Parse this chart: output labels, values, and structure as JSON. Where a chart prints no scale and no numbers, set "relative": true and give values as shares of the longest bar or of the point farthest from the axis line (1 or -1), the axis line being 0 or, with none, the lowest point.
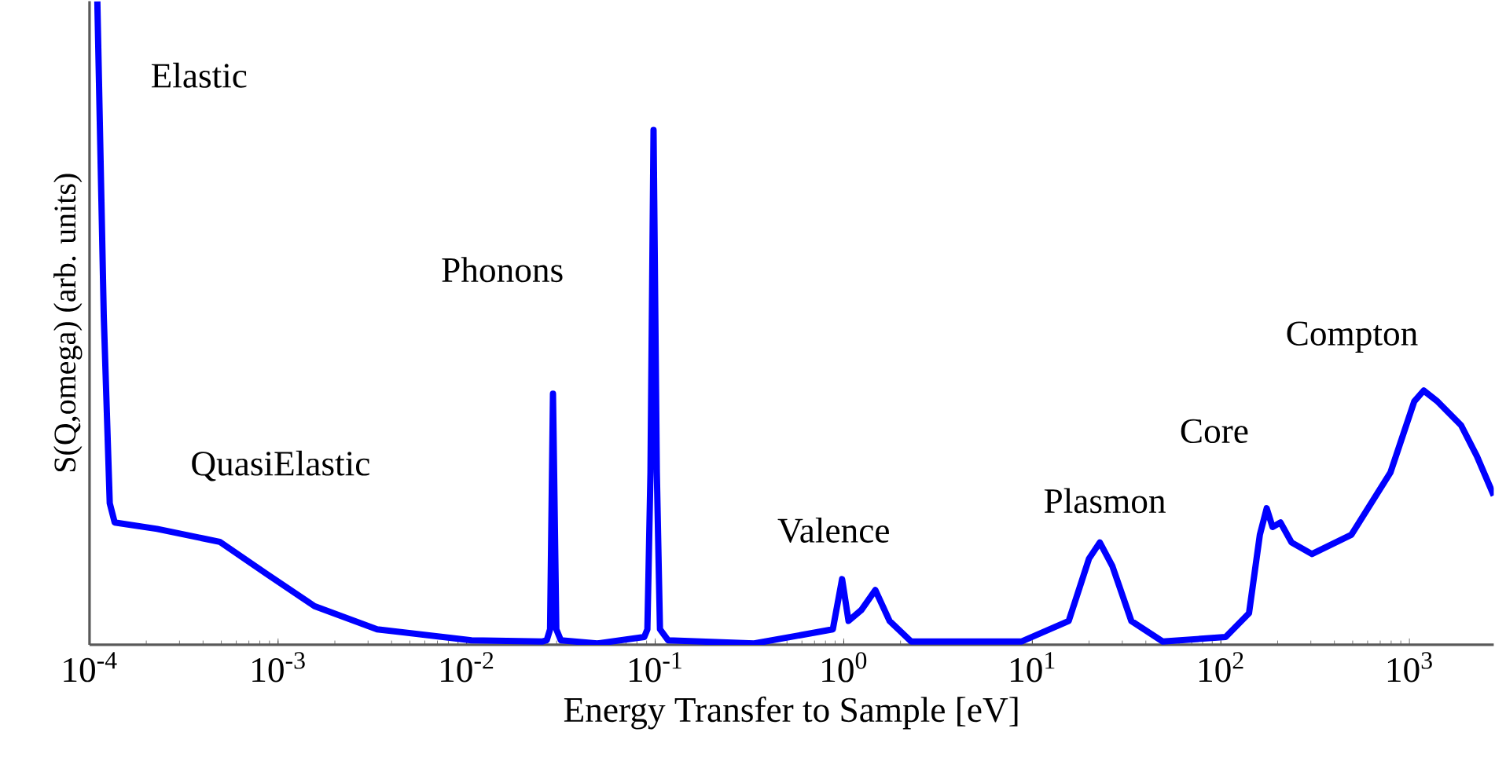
{
  "chart_data": {
    "type": "line",
    "xlabel": "Energy Transfer to Sample [eV]",
    "ylabel": "S(Q,omega)  (arb. units)",
    "log": "x",
    "relative": true,
    "grid": false,
    "marker": "none",
    "line_style": "solid",
    "xlim": [
      0.0001,
      2800
    ],
    "xticks": [
      {
        "value": 0.0001,
        "label": "10$^{-4}$"
      },
      {
        "value": 0.001,
        "label": "10$^{-3}$"
      },
      {
        "value": 0.01,
        "label": "10$^{-2}$"
      },
      {
        "value": 0.1,
        "label": "10$^{-1}$"
      },
      {
        "value": 1,
        "label": "10$^{0}$"
      },
      {
        "value": 10,
        "label": "10$^{1}$"
      },
      {
        "value": 100,
        "label": "10$^{2}$"
      },
      {
        "value": 1000,
        "label": "10$^{3}$"
      }
    ],
    "annotations": [
      "Elastic",
      "QuasiElastic",
      "Phonons",
      "Valence",
      "Plasmon",
      "Core",
      "Compton"
    ],
    "series": [
      {
        "color": "#0000ff",
        "x": [
          0.00011,
          0.000119,
          0.000128,
          0.000136,
          0.000228,
          0.00049,
          0.00087,
          0.00156,
          0.00335,
          0.0106,
          0.0251,
          0.0266,
          0.0277,
          0.0287,
          0.0299,
          0.0316,
          0.0492,
          0.0875,
          0.0909,
          0.0944,
          0.098,
          0.102,
          0.106,
          0.117,
          0.335,
          0.875,
          0.98,
          1.06,
          1.24,
          1.47,
          1.75,
          2.28,
          8.74,
          15.6,
          20,
          22.8,
          26.6,
          33.5,
          49.2,
          106,
          141,
          161,
          175,
          188,
          207,
          237,
          304,
          492,
          794,
          1060,
          1190,
          1410,
          1880,
          2280,
          2800
        ],
        "values": [
          1.0,
          0.51,
          0.22,
          0.19,
          0.18,
          0.16,
          0.11,
          0.06,
          0.024,
          0.007,
          0.005,
          0.007,
          0.024,
          0.39,
          0.024,
          0.007,
          0.002,
          0.012,
          0.024,
          0.268,
          0.8,
          0.268,
          0.024,
          0.007,
          0.002,
          0.024,
          0.102,
          0.037,
          0.054,
          0.085,
          0.037,
          0.005,
          0.005,
          0.037,
          0.134,
          0.159,
          0.122,
          0.037,
          0.005,
          0.012,
          0.049,
          0.171,
          0.212,
          0.183,
          0.19,
          0.159,
          0.141,
          0.171,
          0.268,
          0.378,
          0.395,
          0.378,
          0.341,
          0.293,
          0.232
        ]
      }
    ]
  }
}
